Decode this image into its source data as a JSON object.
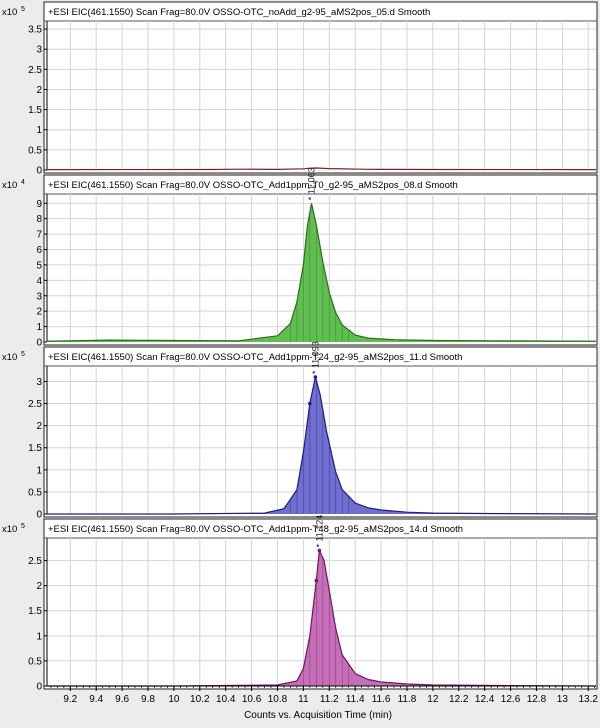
{
  "chart_data": {
    "type": "area",
    "xlabel": "Counts vs. Acquisition Time (min)",
    "xlim": [
      9.02,
      13.26
    ],
    "x_ticks": [
      "9.2",
      "9.4",
      "9.6",
      "9.8",
      "10",
      "10.2",
      "10.4",
      "10.6",
      "10.8",
      "11",
      "11.2",
      "11.4",
      "11.6",
      "11.8",
      "12",
      "12.2",
      "12.4",
      "12.6",
      "12.8",
      "13",
      "13.2"
    ],
    "panels": [
      {
        "title": "+ESI EIC(461.1550) Scan Frag=80.0V OSSO-OTC_noAdd_g2-95_aMS2pos_05.d  Smooth",
        "exponent_label": "x10",
        "exponent_power": "5",
        "ylim": [
          0,
          3.7
        ],
        "y_ticks": [
          "0",
          "0.5",
          "1",
          "1.5",
          "2",
          "2.5",
          "3",
          "3.5"
        ],
        "peak_label": "",
        "line_color": "#8b1a1a",
        "fill_color": "",
        "x": [
          9.02,
          10.3,
          10.5,
          10.8,
          11.0,
          11.05,
          11.1,
          11.2,
          11.5,
          12.0,
          13.26
        ],
        "y": [
          0.01,
          0.012,
          0.02,
          0.015,
          0.03,
          0.045,
          0.05,
          0.035,
          0.018,
          0.012,
          0.01
        ]
      },
      {
        "title": "+ESI EIC(461.1550) Scan Frag=80.0V OSSO-OTC_Add1ppm-T0_g2-95_aMS2pos_08.d  Smooth",
        "exponent_label": "x10",
        "exponent_power": "4",
        "ylim": [
          0,
          9.6
        ],
        "y_ticks": [
          "0",
          "1",
          "2",
          "3",
          "4",
          "5",
          "6",
          "7",
          "8",
          "9"
        ],
        "peak_label": "* 11.063",
        "line_color": "#2e6b1e",
        "fill_color": "#5fbe4f",
        "x": [
          9.02,
          9.5,
          10.0,
          10.5,
          10.8,
          10.9,
          10.95,
          11.0,
          11.03,
          11.063,
          11.1,
          11.15,
          11.2,
          11.25,
          11.3,
          11.4,
          11.5,
          11.7,
          12.0,
          12.5,
          13.0,
          13.26
        ],
        "y": [
          0.05,
          0.12,
          0.1,
          0.08,
          0.4,
          1.2,
          2.6,
          5.0,
          7.5,
          9.0,
          7.6,
          5.2,
          3.2,
          1.9,
          1.1,
          0.45,
          0.25,
          0.15,
          0.1,
          0.08,
          0.06,
          0.05
        ]
      },
      {
        "title": "+ESI EIC(461.1550) Scan Frag=80.0V OSSO-OTC_Add1ppm-T24_g2-95_aMS2pos_11.d  Smooth",
        "exponent_label": "x10",
        "exponent_power": "5",
        "ylim": [
          0,
          3.35
        ],
        "y_ticks": [
          "0",
          "0.5",
          "1",
          "1.5",
          "2",
          "2.5",
          "3"
        ],
        "peak_label": "* 11.093",
        "line_color": "#1c1c7a",
        "fill_color": "#6f6fd0",
        "x": [
          9.02,
          10.0,
          10.7,
          10.85,
          10.95,
          11.0,
          11.05,
          11.093,
          11.13,
          11.18,
          11.25,
          11.3,
          11.4,
          11.5,
          11.6,
          11.8,
          12.0,
          12.5,
          13.26
        ],
        "y": [
          0.0,
          0.0,
          0.02,
          0.12,
          0.55,
          1.4,
          2.5,
          3.1,
          2.7,
          1.85,
          0.95,
          0.55,
          0.25,
          0.14,
          0.09,
          0.04,
          0.02,
          0.01,
          0.0
        ],
        "markers": [
          {
            "x": 11.093,
            "y": 3.1
          },
          {
            "x": 11.05,
            "y": 2.5
          }
        ]
      },
      {
        "title": "+ESI EIC(461.1550) Scan Frag=80.0V OSSO-OTC_Add1ppm-T48_g2-95_aMS2pos_14.d  Smooth",
        "exponent_label": "x10",
        "exponent_power": "5",
        "ylim": [
          0,
          2.95
        ],
        "y_ticks": [
          "0",
          "0.5",
          "1",
          "1.5",
          "2",
          "2.5"
        ],
        "peak_label": "* 11.124",
        "line_color": "#6b1a5e",
        "fill_color": "#c56fb8",
        "x": [
          9.02,
          10.0,
          10.8,
          10.95,
          11.0,
          11.05,
          11.1,
          11.124,
          11.16,
          11.2,
          11.25,
          11.3,
          11.4,
          11.5,
          11.6,
          11.8,
          12.0,
          12.5,
          13.26
        ],
        "y": [
          0.0,
          0.0,
          0.02,
          0.1,
          0.35,
          1.0,
          2.1,
          2.7,
          2.5,
          1.9,
          1.15,
          0.62,
          0.25,
          0.13,
          0.08,
          0.04,
          0.02,
          0.01,
          0.0
        ],
        "markers": [
          {
            "x": 11.124,
            "y": 2.7
          },
          {
            "x": 11.1,
            "y": 2.1
          }
        ]
      }
    ]
  }
}
